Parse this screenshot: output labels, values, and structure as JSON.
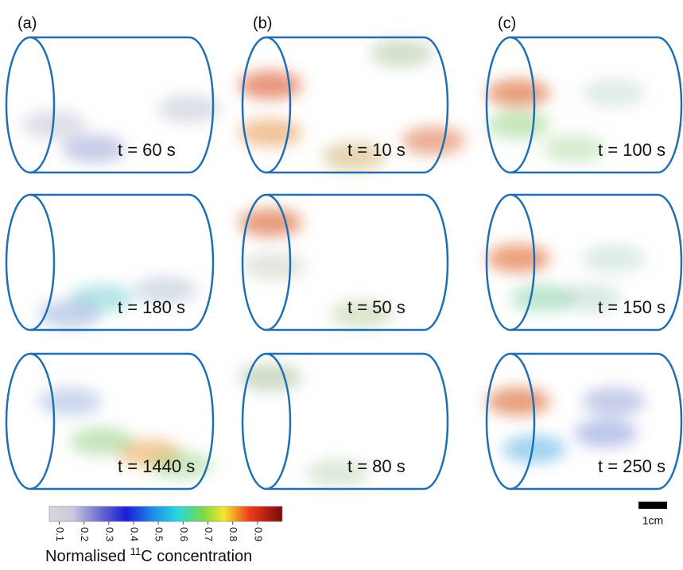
{
  "panels": [
    {
      "label": "(a)",
      "frames": [
        "t = 60 s",
        "t = 180 s",
        "t = 1440 s"
      ]
    },
    {
      "label": "(b)",
      "frames": [
        "t = 10 s",
        "t = 50 s",
        "t = 80 s"
      ]
    },
    {
      "label": "(c)",
      "frames": [
        "t = 100 s",
        "t = 150 s",
        "t = 250 s"
      ]
    }
  ],
  "colorbar": {
    "range": [
      0.06,
      1.0
    ],
    "ticks": [
      0.1,
      0.2,
      0.3,
      0.4,
      0.5,
      0.6,
      0.7,
      0.8,
      0.9
    ],
    "label": {
      "text": "Normalised ",
      "superscript": "11",
      "suffix": "C concentration"
    }
  },
  "scale_bar": "1cm"
}
